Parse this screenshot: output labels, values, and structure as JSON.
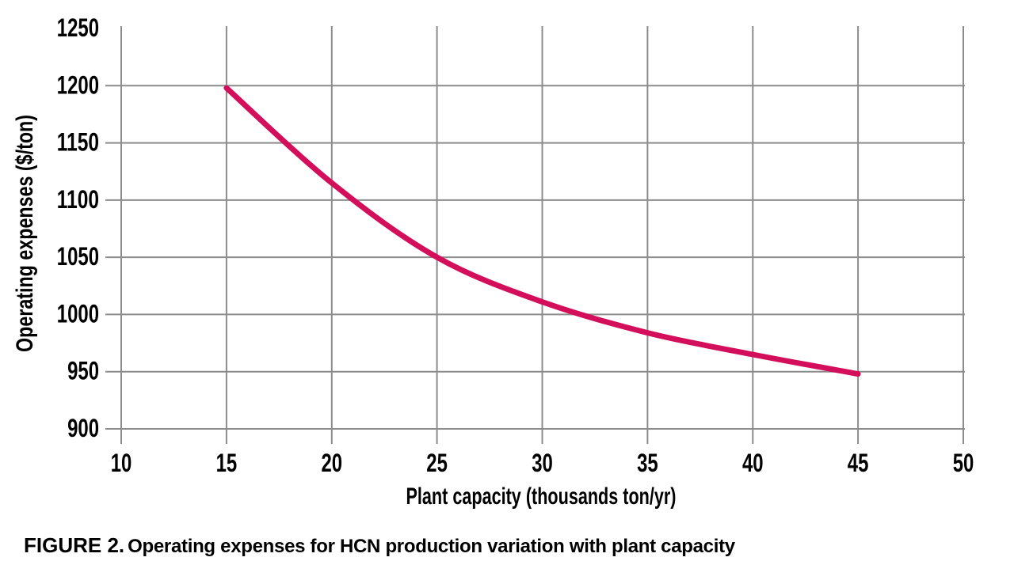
{
  "figure": {
    "caption_label": "FIGURE 2.",
    "caption_text": "Operating expenses for HCN production variation with plant capacity"
  },
  "chart_data": {
    "type": "line",
    "title": "",
    "xlabel": "Plant capacity (thousands ton/yr)",
    "ylabel": "Operating expenses ($/ton)",
    "series": [
      {
        "name": "Operating expenses",
        "x": [
          15,
          20,
          25,
          30,
          35,
          40,
          45
        ],
        "y": [
          1198,
          1115,
          1050,
          1011,
          984,
          965,
          948
        ]
      }
    ],
    "xlim": [
      10,
      50
    ],
    "ylim": [
      900,
      1250
    ],
    "xticks": [
      10,
      15,
      20,
      25,
      30,
      35,
      40,
      45,
      50
    ],
    "yticks": [
      900,
      950,
      1000,
      1050,
      1100,
      1150,
      1200,
      1250
    ],
    "grid": true,
    "legend": "none",
    "line_color": "#d30f5b",
    "grid_color": "#8c8c8c",
    "text_color": "#000000",
    "line_width": 7
  }
}
